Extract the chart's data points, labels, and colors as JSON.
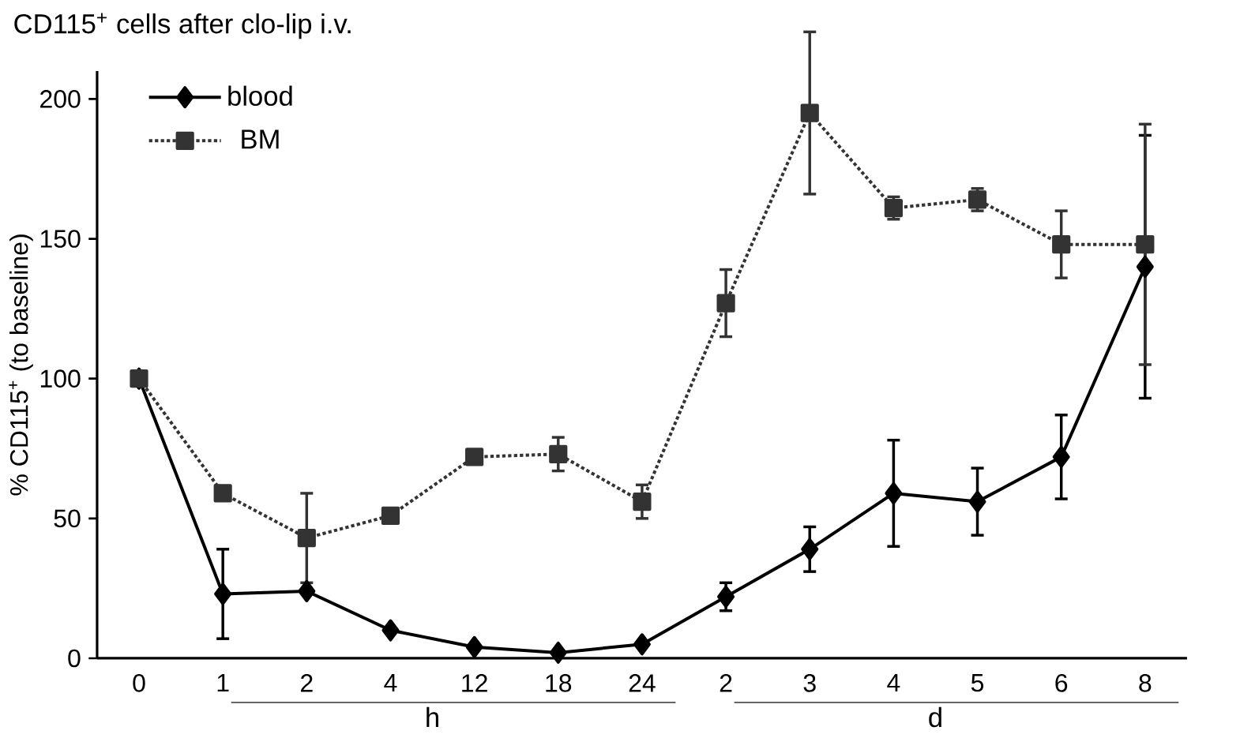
{
  "chart_data": {
    "type": "line",
    "title": "CD115$^{+}$ cells after clo-lip i.v.",
    "ylabel": "% CD115$^{+}$ (to baseline)",
    "categories": [
      "0",
      "1",
      "2",
      "4",
      "12",
      "18",
      "24",
      "2",
      "3",
      "4",
      "5",
      "6",
      "8"
    ],
    "ylim": [
      0,
      210
    ],
    "yticks": [
      0,
      50,
      100,
      150,
      200
    ],
    "legend": "top left",
    "grid": false,
    "annotations": [
      "h",
      "d"
    ],
    "series": [
      {
        "name": "blood",
        "color": "#000000",
        "marker": "diamond",
        "line_style": "solid",
        "values": [
          100,
          23,
          24,
          10,
          4,
          2,
          5,
          22,
          39,
          59,
          56,
          72,
          140
        ],
        "errors": [
          null,
          16,
          null,
          null,
          null,
          null,
          null,
          5,
          8,
          19,
          12,
          15,
          47
        ]
      },
      {
        "name": "BM",
        "color": "#333333",
        "marker": "square",
        "line_style": "dotted",
        "values": [
          100,
          59,
          43,
          51,
          72,
          73,
          56,
          127,
          195,
          161,
          164,
          148,
          148
        ],
        "errors": [
          null,
          null,
          16,
          null,
          null,
          6,
          6,
          12,
          29,
          4,
          4,
          12,
          43
        ]
      }
    ]
  }
}
